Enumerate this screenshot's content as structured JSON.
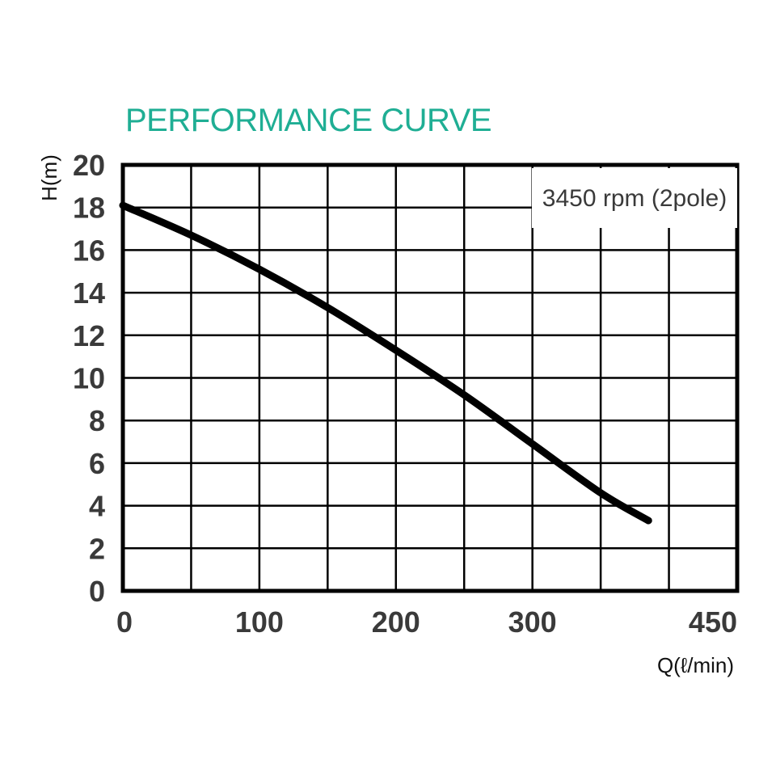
{
  "chart_data": {
    "type": "line",
    "title": "PERFORMANCE CURVE",
    "xlabel": "Q(ℓ/min)",
    "ylabel": "H(m)",
    "annotation": "3450 rpm (2pole)",
    "xlim": [
      0,
      450
    ],
    "ylim": [
      0,
      20
    ],
    "x_ticks": [
      {
        "value": 0,
        "label": "0"
      },
      {
        "value": 100,
        "label": "100"
      },
      {
        "value": 200,
        "label": "200"
      },
      {
        "value": 300,
        "label": "300"
      },
      {
        "value": 450,
        "label": "450"
      }
    ],
    "x_grid": [
      0,
      50,
      100,
      150,
      200,
      250,
      300,
      350,
      400,
      450
    ],
    "y_ticks": [
      0,
      2,
      4,
      6,
      8,
      10,
      12,
      14,
      16,
      18,
      20
    ],
    "grid": true,
    "series": [
      {
        "x": [
          0,
          50,
          100,
          150,
          200,
          250,
          300,
          350,
          385
        ],
        "y": [
          18.1,
          16.7,
          15.1,
          13.3,
          11.3,
          9.2,
          6.9,
          4.6,
          3.3
        ]
      }
    ],
    "colors": {
      "title": "#1fae94",
      "line": "#000000",
      "grid": "#000000",
      "tick_text": "#3a3a3a"
    }
  }
}
